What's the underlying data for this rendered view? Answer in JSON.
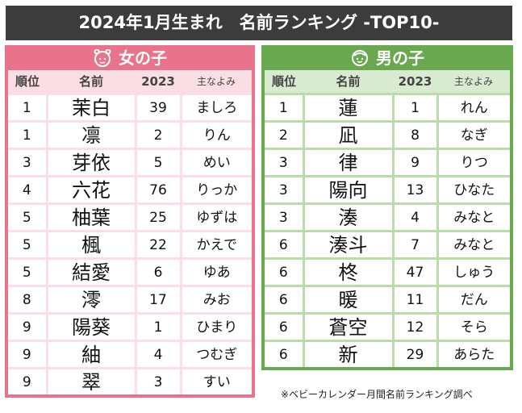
{
  "title": "2024年1月生まれ　名前ランキング -TOP10-",
  "headers": {
    "rank": "順位",
    "name": "名前",
    "year": "2023",
    "reading": "主なよみ"
  },
  "girls": {
    "label": "女の子",
    "icon": "girl-face-icon",
    "color": "#e8738a",
    "rows": [
      {
        "rank": "1",
        "name": "茉白",
        "year": "39",
        "reading": "ましろ"
      },
      {
        "rank": "1",
        "name": "凛",
        "year": "2",
        "reading": "りん"
      },
      {
        "rank": "3",
        "name": "芽依",
        "year": "5",
        "reading": "めい"
      },
      {
        "rank": "4",
        "name": "六花",
        "year": "76",
        "reading": "りっか"
      },
      {
        "rank": "5",
        "name": "柚葉",
        "year": "25",
        "reading": "ゆずは"
      },
      {
        "rank": "5",
        "name": "楓",
        "year": "22",
        "reading": "かえで"
      },
      {
        "rank": "5",
        "name": "結愛",
        "year": "6",
        "reading": "ゆあ"
      },
      {
        "rank": "8",
        "name": "澪",
        "year": "17",
        "reading": "みお"
      },
      {
        "rank": "9",
        "name": "陽葵",
        "year": "1",
        "reading": "ひまり"
      },
      {
        "rank": "9",
        "name": "紬",
        "year": "4",
        "reading": "つむぎ"
      },
      {
        "rank": "9",
        "name": "翠",
        "year": "3",
        "reading": "すい"
      }
    ]
  },
  "boys": {
    "label": "男の子",
    "icon": "boy-face-icon",
    "color": "#6aa84f",
    "rows": [
      {
        "rank": "1",
        "name": "蓮",
        "year": "1",
        "reading": "れん"
      },
      {
        "rank": "2",
        "name": "凪",
        "year": "8",
        "reading": "なぎ"
      },
      {
        "rank": "3",
        "name": "律",
        "year": "9",
        "reading": "りつ"
      },
      {
        "rank": "3",
        "name": "陽向",
        "year": "13",
        "reading": "ひなた"
      },
      {
        "rank": "3",
        "name": "湊",
        "year": "4",
        "reading": "みなと"
      },
      {
        "rank": "6",
        "name": "湊斗",
        "year": "7",
        "reading": "みなと"
      },
      {
        "rank": "6",
        "name": "柊",
        "year": "47",
        "reading": "しゅう"
      },
      {
        "rank": "6",
        "name": "暖",
        "year": "11",
        "reading": "だん"
      },
      {
        "rank": "6",
        "name": "蒼空",
        "year": "12",
        "reading": "そら"
      },
      {
        "rank": "6",
        "name": "新",
        "year": "29",
        "reading": "あらた"
      }
    ]
  },
  "footnote": "※ベビーカレンダー月間名前ランキング調べ"
}
